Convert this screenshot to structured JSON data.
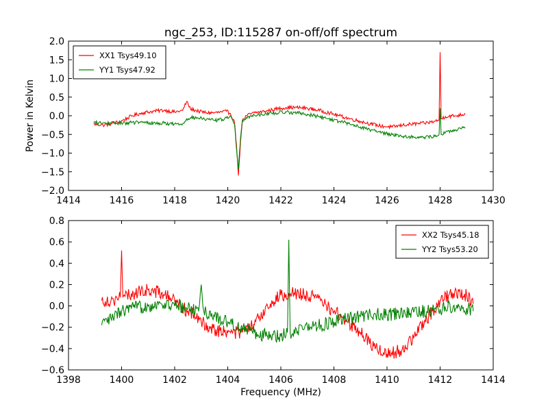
{
  "figure": {
    "title": "ngc_253, ID:115287 on-off/off spectrum",
    "colors": {
      "red": "#ff0000",
      "green": "#008000",
      "axes": "#000000",
      "background": "#ffffff"
    }
  },
  "chart_data": [
    {
      "type": "line",
      "title": "ngc_253, ID:115287 on-off/off spectrum",
      "xlabel": "",
      "ylabel": "Power in Kelvin",
      "xlim": [
        1414,
        1430
      ],
      "ylim": [
        -2.0,
        2.0
      ],
      "xticks": [
        1414,
        1416,
        1418,
        1420,
        1422,
        1424,
        1426,
        1428,
        1430
      ],
      "xtick_labels": [
        "1414",
        "1416",
        "1418",
        "1420",
        "1422",
        "1424",
        "1426",
        "1428",
        "1430"
      ],
      "yticks": [
        -2.0,
        -1.5,
        -1.0,
        -0.5,
        0.0,
        0.5,
        1.0,
        1.5,
        2.0
      ],
      "ytick_labels": [
        "−2.0",
        "−1.5",
        "−1.0",
        "−0.5",
        "0.0",
        "0.5",
        "1.0",
        "1.5",
        "2.0"
      ],
      "grid": false,
      "legend_position": "top-left",
      "series": [
        {
          "name": "XX1 Tsys49.10",
          "color": "#ff0000",
          "x": [
            1414.95,
            1415.3,
            1415.6,
            1416.0,
            1416.4,
            1416.8,
            1417.2,
            1417.6,
            1418.0,
            1418.3,
            1418.45,
            1418.6,
            1418.9,
            1419.2,
            1419.5,
            1419.8,
            1419.95,
            1420.1,
            1420.25,
            1420.33,
            1420.4,
            1420.48,
            1420.55,
            1420.7,
            1421.0,
            1421.4,
            1421.8,
            1422.2,
            1422.6,
            1423.0,
            1423.4,
            1423.8,
            1424.2,
            1424.6,
            1425.0,
            1425.4,
            1425.8,
            1426.2,
            1426.6,
            1427.0,
            1427.4,
            1427.8,
            1427.96,
            1428.0,
            1428.04,
            1428.2,
            1428.6,
            1428.95
          ],
          "y": [
            -0.22,
            -0.25,
            -0.22,
            -0.14,
            0.0,
            0.08,
            0.12,
            0.15,
            0.1,
            0.14,
            0.38,
            0.18,
            0.12,
            0.08,
            0.08,
            0.1,
            0.12,
            0.06,
            -0.15,
            -0.8,
            -1.6,
            -0.7,
            -0.15,
            0.0,
            0.08,
            0.12,
            0.18,
            0.22,
            0.22,
            0.2,
            0.15,
            0.08,
            0.0,
            -0.08,
            -0.15,
            -0.22,
            -0.28,
            -0.3,
            -0.25,
            -0.22,
            -0.2,
            -0.15,
            -0.12,
            1.7,
            -0.08,
            -0.02,
            0.0,
            0.05
          ]
        },
        {
          "name": "YY1 Tsys47.92",
          "color": "#008000",
          "x": [
            1414.95,
            1415.3,
            1415.6,
            1416.0,
            1416.4,
            1416.8,
            1417.2,
            1417.6,
            1418.0,
            1418.3,
            1418.45,
            1418.6,
            1418.9,
            1419.2,
            1419.5,
            1419.8,
            1419.95,
            1420.1,
            1420.25,
            1420.33,
            1420.4,
            1420.48,
            1420.55,
            1420.7,
            1421.0,
            1421.4,
            1421.8,
            1422.2,
            1422.6,
            1423.0,
            1423.4,
            1423.8,
            1424.2,
            1424.6,
            1425.0,
            1425.4,
            1425.8,
            1426.2,
            1426.6,
            1427.0,
            1427.4,
            1427.8,
            1427.96,
            1428.0,
            1428.04,
            1428.2,
            1428.6,
            1428.95
          ],
          "y": [
            -0.18,
            -0.2,
            -0.2,
            -0.2,
            -0.18,
            -0.18,
            -0.2,
            -0.2,
            -0.22,
            -0.22,
            -0.08,
            -0.05,
            -0.06,
            -0.1,
            -0.12,
            -0.1,
            -0.06,
            0.0,
            -0.2,
            -0.9,
            -1.45,
            -0.6,
            -0.12,
            -0.05,
            0.02,
            0.05,
            0.08,
            0.1,
            0.08,
            0.04,
            -0.02,
            -0.08,
            -0.15,
            -0.22,
            -0.3,
            -0.38,
            -0.45,
            -0.5,
            -0.55,
            -0.57,
            -0.58,
            -0.55,
            -0.5,
            0.2,
            -0.5,
            -0.45,
            -0.38,
            -0.32
          ]
        }
      ]
    },
    {
      "type": "line",
      "title": "",
      "xlabel": "Frequency (MHz)",
      "ylabel": "",
      "xlim": [
        1398,
        1414
      ],
      "ylim": [
        -0.6,
        0.8
      ],
      "xticks": [
        1398,
        1400,
        1402,
        1404,
        1406,
        1408,
        1410,
        1412,
        1414
      ],
      "xtick_labels": [
        "1398",
        "1400",
        "1402",
        "1404",
        "1406",
        "1408",
        "1410",
        "1412",
        "1414"
      ],
      "yticks": [
        -0.6,
        -0.4,
        -0.2,
        0.0,
        0.2,
        0.4,
        0.6,
        0.8
      ],
      "ytick_labels": [
        "−0.6",
        "−0.4",
        "−0.2",
        "0.0",
        "0.2",
        "0.4",
        "0.6",
        "0.8"
      ],
      "grid": false,
      "legend_position": "top-right",
      "series": [
        {
          "name": "XX2 Tsys45.18",
          "color": "#ff0000",
          "x": [
            1399.25,
            1399.6,
            1399.95,
            1400.0,
            1400.05,
            1400.5,
            1401.0,
            1401.5,
            1402.0,
            1402.5,
            1403.0,
            1403.5,
            1404.0,
            1404.5,
            1405.0,
            1405.5,
            1406.0,
            1406.3,
            1406.5,
            1407.0,
            1407.5,
            1408.0,
            1408.5,
            1409.0,
            1409.5,
            1410.0,
            1410.5,
            1411.0,
            1411.5,
            1412.0,
            1412.5,
            1413.0,
            1413.25
          ],
          "y": [
            0.05,
            0.05,
            0.08,
            0.52,
            0.08,
            0.12,
            0.15,
            0.12,
            0.05,
            -0.05,
            -0.15,
            -0.22,
            -0.25,
            -0.25,
            -0.18,
            0.0,
            0.1,
            0.12,
            0.12,
            0.1,
            0.05,
            -0.05,
            -0.15,
            -0.25,
            -0.38,
            -0.45,
            -0.42,
            -0.3,
            -0.12,
            0.05,
            0.12,
            0.1,
            0.02
          ]
        },
        {
          "name": "YY2 Tsys53.20",
          "color": "#008000",
          "x": [
            1399.25,
            1399.6,
            1400.0,
            1400.5,
            1401.0,
            1401.5,
            1402.0,
            1402.5,
            1402.9,
            1403.0,
            1403.1,
            1403.5,
            1404.0,
            1404.5,
            1405.0,
            1405.5,
            1406.0,
            1406.25,
            1406.3,
            1406.35,
            1406.5,
            1407.0,
            1407.5,
            1408.0,
            1408.5,
            1409.0,
            1409.5,
            1410.0,
            1410.5,
            1411.0,
            1411.5,
            1412.0,
            1412.5,
            1413.0,
            1413.25
          ],
          "y": [
            -0.18,
            -0.12,
            -0.05,
            -0.02,
            0.0,
            0.02,
            0.0,
            -0.02,
            -0.05,
            0.2,
            -0.05,
            -0.1,
            -0.15,
            -0.2,
            -0.25,
            -0.28,
            -0.28,
            -0.25,
            0.62,
            -0.25,
            -0.22,
            -0.2,
            -0.18,
            -0.15,
            -0.12,
            -0.1,
            -0.08,
            -0.08,
            -0.08,
            -0.06,
            -0.05,
            -0.03,
            0.0,
            -0.02,
            -0.05
          ]
        }
      ]
    }
  ]
}
